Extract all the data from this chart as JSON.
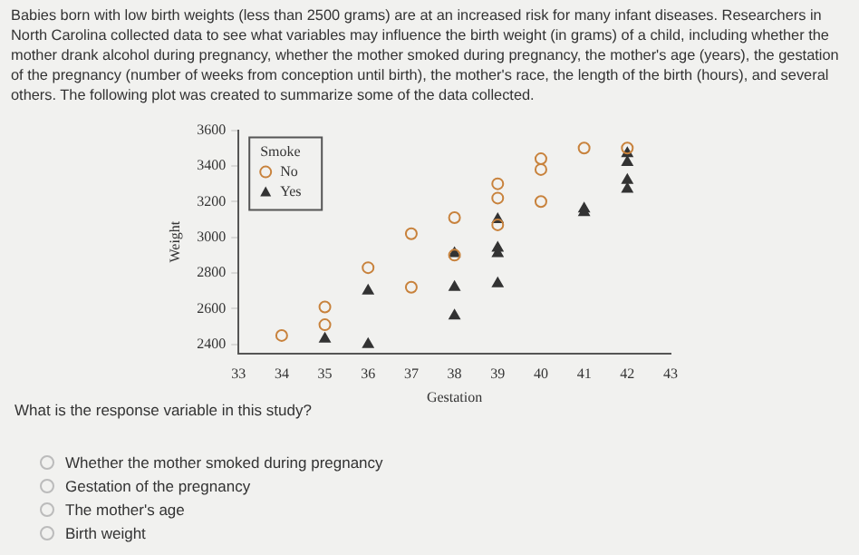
{
  "chart_data": {
    "type": "scatter",
    "title": "Babies born with low birth weights (less than 2500 grams) are at an increased risk for many infant diseases. Researchers in North Carolina collected data to see what variables may influence the birth weight (in grams) of a child, including whether the mother drank alcohol during pregnancy, whether the mother smoked during pregnancy, the mother's age (years), the gestation of the pregnancy (number of weeks from conception until birth), the mother's race, the length of the birth (hours), and several others. The following plot was created to summarize some of the data collected.",
    "xlabel": "Gestation",
    "ylabel": "Weight",
    "legend_title": "Smoke",
    "legend": "top left",
    "grid": false,
    "xlim": [
      33,
      43
    ],
    "xticks": [
      33,
      34,
      35,
      36,
      37,
      38,
      39,
      40,
      41,
      42,
      43
    ],
    "ylim": [
      2350,
      3600
    ],
    "yticks": [
      2400,
      2600,
      2800,
      3000,
      3200,
      3400,
      3600
    ],
    "series": [
      {
        "name": "No",
        "color": "#c8823c",
        "marker": "circle",
        "x": [
          34,
          35,
          35,
          36,
          37,
          37,
          38,
          38,
          39,
          39,
          39,
          40,
          40,
          40,
          41,
          42
        ],
        "values": [
          2450,
          2610,
          2510,
          2830,
          3020,
          2720,
          3110,
          2900,
          3300,
          3220,
          3070,
          3440,
          3380,
          3200,
          3500,
          3500
        ]
      },
      {
        "name": "Yes",
        "color": "#333333",
        "marker": "triangle",
        "x": [
          35,
          36,
          36,
          38,
          38,
          38,
          39,
          39,
          39,
          39,
          41,
          41,
          42,
          42,
          42,
          42
        ],
        "values": [
          2430,
          2700,
          2400,
          2720,
          2560,
          2910,
          2740,
          2910,
          2940,
          3100,
          3160,
          3140,
          3420,
          3320,
          3270,
          3470
        ]
      }
    ],
    "annotations": [
      "What is the response variable in this study?",
      "Whether the mother smoked during pregnancy",
      "Gestation of the pregnancy",
      "The mother's age",
      "Birth weight"
    ]
  }
}
